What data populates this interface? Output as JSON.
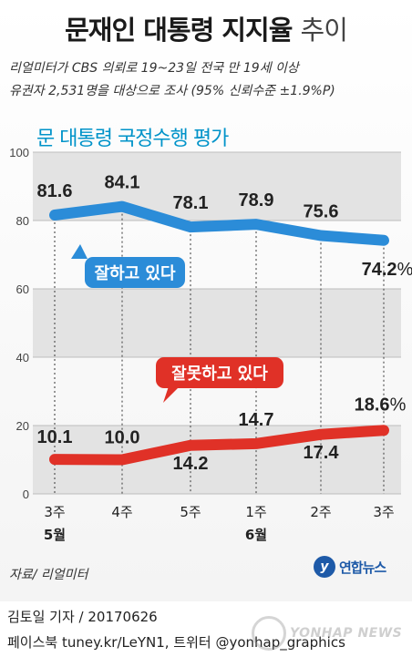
{
  "header": {
    "title": "문재인 대통령 지지율",
    "title_suffix": "추이",
    "subtitle_line1": "리얼미터가 CBS 의뢰로 19~23일 전국 만 19세 이상",
    "subtitle_line2": "유권자 2,531명을 대상으로 조사 (95% 신뢰수준 ±1.9%P)"
  },
  "chart_data": {
    "type": "line",
    "title": "문 대통령 국정수행 평가",
    "categories": [
      "3주",
      "4주",
      "5주",
      "1주",
      "2주",
      "3주"
    ],
    "month_labels": [
      {
        "index": 0,
        "label": "5월"
      },
      {
        "index": 3,
        "label": "6월"
      }
    ],
    "ylim": [
      0,
      100
    ],
    "yticks": [
      "0",
      "20",
      "40",
      "60",
      "80",
      "100"
    ],
    "grid": true,
    "series": [
      {
        "name": "잘하고 있다",
        "values": [
          81.6,
          84.1,
          78.1,
          78.9,
          75.6,
          74.2
        ],
        "color": "#2b8cd8"
      },
      {
        "name": "잘못하고 있다",
        "values": [
          10.1,
          10.0,
          14.2,
          14.7,
          17.4,
          18.6
        ],
        "color": "#e03127"
      }
    ],
    "value_labels": {
      "approve": [
        "81.6",
        "84.1",
        "78.1",
        "78.9",
        "75.6",
        "74.2"
      ],
      "disapprove": [
        "10.1",
        "10.0",
        "14.2",
        "14.7",
        "17.4",
        "18.6"
      ]
    },
    "last_value_unit": "%"
  },
  "footer": {
    "source": "자료/ 리얼미터",
    "logo_text": "연합뉴스",
    "reporter": "김토일 기자 / 20170626",
    "social": "페이스북 tuney.kr/LeYN1, 트위터 @yonhap_graphics",
    "watermark": "YONHAP NEWS"
  }
}
